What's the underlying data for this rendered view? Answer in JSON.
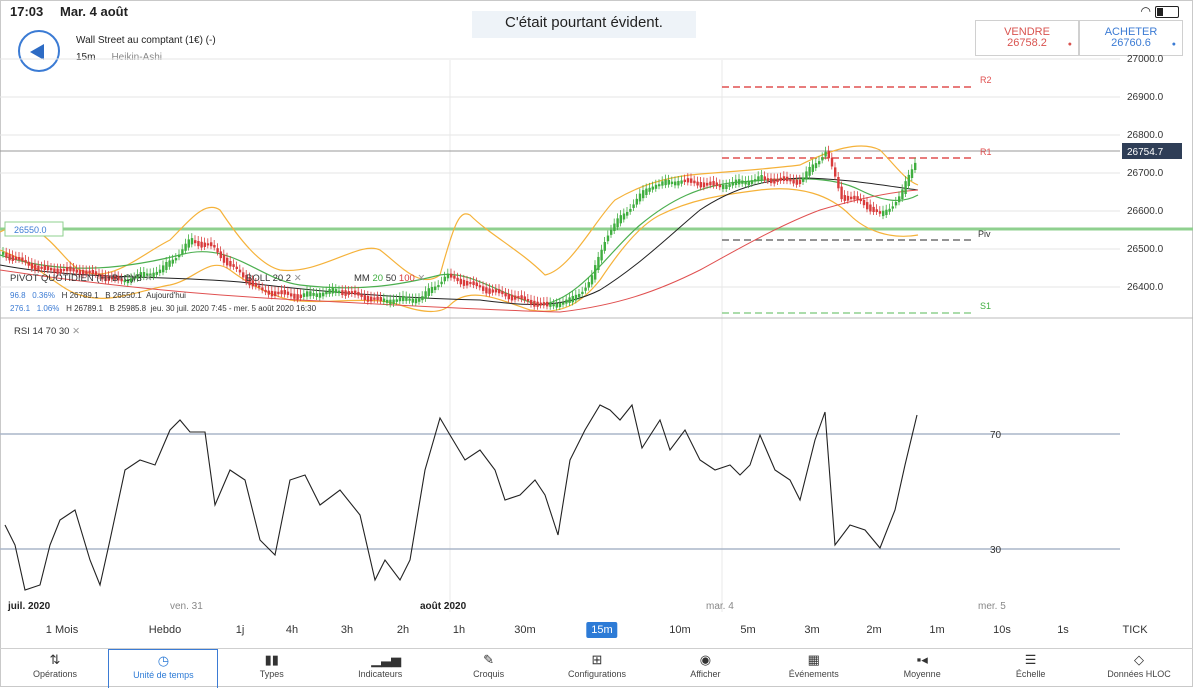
{
  "status": {
    "time": "17:03",
    "date": "Mar. 4 août"
  },
  "caption": "C'était pourtant évident.",
  "instrument": {
    "name": "Wall Street au comptant (1€) (-)",
    "timeframe": "15m",
    "chart_type": "Heikin-Ashi"
  },
  "trade": {
    "sell_label": "VENDRE",
    "sell_price": "26758.2",
    "buy_label": "ACHETER",
    "buy_price": "26760.6"
  },
  "price_axis": {
    "ticks": [
      "27000.0",
      "26900.0",
      "26800.0",
      "26700.0",
      "26600.0",
      "26500.0",
      "26400.0"
    ],
    "current": "26754.7",
    "pivot_tag": "26550.0"
  },
  "levels": {
    "r2": "R2",
    "r1": "R1",
    "piv": "Piv",
    "s1": "S1"
  },
  "legend": {
    "pivot": "PIVOT QUOTIDIEN (H+B+C)/3",
    "boll": "BOLL 20 2",
    "mm": "MM",
    "mm1": "20",
    "mm2": "50",
    "mm3": "100",
    "row2": [
      "96.8",
      "0.36%",
      "H 26789.1",
      "B 26550.1",
      "Aujourd'hui"
    ],
    "row3": [
      "276.1",
      "1.06%",
      "H 26789.1",
      "B 25985.8",
      "jeu. 30 juil. 2020 7:45 - mer. 5 août 2020 16:30"
    ]
  },
  "rsi": {
    "label": "RSI 14 70 30",
    "upper": "70",
    "lower": "30"
  },
  "x_axis": [
    "juil. 2020",
    "ven. 31",
    "août 2020",
    "mar. 4",
    "mer. 5"
  ],
  "timeframes": [
    "1 Mois",
    "Hebdo",
    "1j",
    "4h",
    "3h",
    "2h",
    "1h",
    "30m",
    "15m",
    "10m",
    "5m",
    "3m",
    "2m",
    "1m",
    "10s",
    "1s",
    "TICK"
  ],
  "active_timeframe": "15m",
  "toolbar": [
    {
      "label": "Opérations",
      "icon": "operations-icon"
    },
    {
      "label": "Unité de temps",
      "icon": "clock-icon"
    },
    {
      "label": "Types",
      "icon": "candles-icon"
    },
    {
      "label": "Indicateurs",
      "icon": "indicators-icon"
    },
    {
      "label": "Croquis",
      "icon": "pencil-icon"
    },
    {
      "label": "Configurations",
      "icon": "layout-icon"
    },
    {
      "label": "Afficher",
      "icon": "eye-icon"
    },
    {
      "label": "Événements",
      "icon": "calendar-icon"
    },
    {
      "label": "Moyenne",
      "icon": "average-icon"
    },
    {
      "label": "Échelle",
      "icon": "scale-icon"
    },
    {
      "label": "Données HLOC",
      "icon": "data-icon"
    }
  ],
  "colors": {
    "accent": "#2d7bd6",
    "up": "#3fae3f",
    "down": "#d93b3b",
    "boll": "#f5a623",
    "sell": "#d9534f",
    "buy": "#3b7bd4"
  }
}
